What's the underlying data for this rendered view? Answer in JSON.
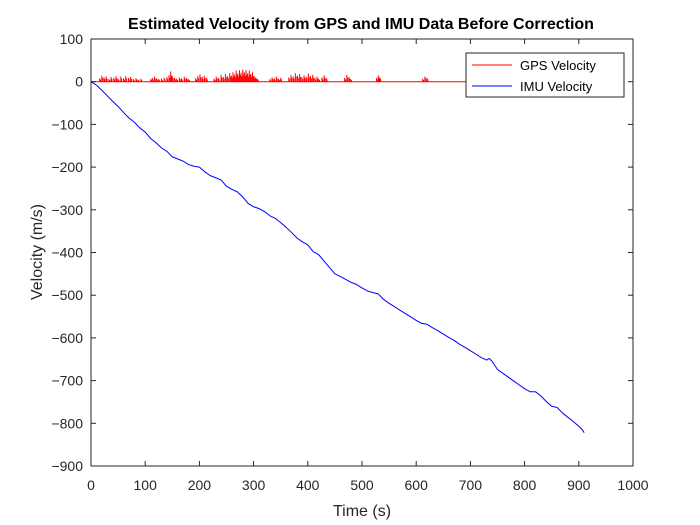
{
  "chart_data": {
    "type": "line",
    "title": "Estimated Velocity from GPS and IMU Data Before Correction",
    "xlabel": "Time (s)",
    "ylabel": "Velocity (m/s)",
    "xlim": [
      0,
      1000
    ],
    "ylim": [
      -900,
      100
    ],
    "xticks": [
      0,
      100,
      200,
      300,
      400,
      500,
      600,
      700,
      800,
      900,
      1000
    ],
    "yticks": [
      100,
      0,
      -100,
      -200,
      -300,
      -400,
      -500,
      -600,
      -700,
      -800,
      -900
    ],
    "grid": false,
    "legend_position": "top-right",
    "series": [
      {
        "name": "GPS Velocity",
        "color": "#ff0000",
        "baseline": 0,
        "x_range": [
          0,
          915
        ],
        "spikes": [
          {
            "x": 16,
            "v": 8
          },
          {
            "x": 20,
            "v": 14
          },
          {
            "x": 24,
            "v": 10
          },
          {
            "x": 28,
            "v": 12
          },
          {
            "x": 33,
            "v": 6
          },
          {
            "x": 37,
            "v": 11
          },
          {
            "x": 42,
            "v": 9
          },
          {
            "x": 46,
            "v": 13
          },
          {
            "x": 50,
            "v": 7
          },
          {
            "x": 55,
            "v": 12
          },
          {
            "x": 60,
            "v": 8
          },
          {
            "x": 64,
            "v": 13
          },
          {
            "x": 69,
            "v": 9
          },
          {
            "x": 73,
            "v": 11
          },
          {
            "x": 78,
            "v": 6
          },
          {
            "x": 83,
            "v": 8
          },
          {
            "x": 87,
            "v": 5
          },
          {
            "x": 92,
            "v": 7
          },
          {
            "x": 110,
            "v": 6
          },
          {
            "x": 113,
            "v": 9
          },
          {
            "x": 117,
            "v": 12
          },
          {
            "x": 121,
            "v": 8
          },
          {
            "x": 125,
            "v": 6
          },
          {
            "x": 130,
            "v": 7
          },
          {
            "x": 135,
            "v": 9
          },
          {
            "x": 140,
            "v": 11
          },
          {
            "x": 144,
            "v": 15
          },
          {
            "x": 147,
            "v": 24
          },
          {
            "x": 150,
            "v": 13
          },
          {
            "x": 154,
            "v": 9
          },
          {
            "x": 158,
            "v": 7
          },
          {
            "x": 163,
            "v": 10
          },
          {
            "x": 167,
            "v": 8
          },
          {
            "x": 172,
            "v": 12
          },
          {
            "x": 176,
            "v": 9
          },
          {
            "x": 180,
            "v": 6
          },
          {
            "x": 193,
            "v": 8
          },
          {
            "x": 197,
            "v": 13
          },
          {
            "x": 201,
            "v": 17
          },
          {
            "x": 205,
            "v": 11
          },
          {
            "x": 209,
            "v": 14
          },
          {
            "x": 213,
            "v": 9
          },
          {
            "x": 227,
            "v": 7
          },
          {
            "x": 231,
            "v": 12
          },
          {
            "x": 235,
            "v": 9
          },
          {
            "x": 240,
            "v": 16
          },
          {
            "x": 244,
            "v": 11
          },
          {
            "x": 248,
            "v": 18
          },
          {
            "x": 252,
            "v": 13
          },
          {
            "x": 256,
            "v": 20
          },
          {
            "x": 259,
            "v": 14
          },
          {
            "x": 262,
            "v": 22
          },
          {
            "x": 265,
            "v": 17
          },
          {
            "x": 268,
            "v": 26
          },
          {
            "x": 271,
            "v": 19
          },
          {
            "x": 274,
            "v": 27
          },
          {
            "x": 277,
            "v": 21
          },
          {
            "x": 280,
            "v": 28
          },
          {
            "x": 283,
            "v": 22
          },
          {
            "x": 286,
            "v": 27
          },
          {
            "x": 289,
            "v": 20
          },
          {
            "x": 292,
            "v": 26
          },
          {
            "x": 295,
            "v": 18
          },
          {
            "x": 298,
            "v": 22
          },
          {
            "x": 301,
            "v": 13
          },
          {
            "x": 304,
            "v": 10
          },
          {
            "x": 307,
            "v": 7
          },
          {
            "x": 330,
            "v": 6
          },
          {
            "x": 334,
            "v": 10
          },
          {
            "x": 338,
            "v": 8
          },
          {
            "x": 342,
            "v": 12
          },
          {
            "x": 346,
            "v": 7
          },
          {
            "x": 350,
            "v": 9
          },
          {
            "x": 365,
            "v": 10
          },
          {
            "x": 369,
            "v": 16
          },
          {
            "x": 373,
            "v": 12
          },
          {
            "x": 377,
            "v": 20
          },
          {
            "x": 381,
            "v": 14
          },
          {
            "x": 385,
            "v": 18
          },
          {
            "x": 389,
            "v": 11
          },
          {
            "x": 393,
            "v": 15
          },
          {
            "x": 397,
            "v": 12
          },
          {
            "x": 401,
            "v": 19
          },
          {
            "x": 405,
            "v": 13
          },
          {
            "x": 409,
            "v": 16
          },
          {
            "x": 413,
            "v": 9
          },
          {
            "x": 417,
            "v": 12
          },
          {
            "x": 420,
            "v": 7
          },
          {
            "x": 426,
            "v": 10
          },
          {
            "x": 430,
            "v": 15
          },
          {
            "x": 434,
            "v": 9
          },
          {
            "x": 468,
            "v": 9
          },
          {
            "x": 472,
            "v": 16
          },
          {
            "x": 476,
            "v": 11
          },
          {
            "x": 479,
            "v": 6
          },
          {
            "x": 527,
            "v": 9
          },
          {
            "x": 530,
            "v": 15
          },
          {
            "x": 533,
            "v": 10
          },
          {
            "x": 612,
            "v": 7
          },
          {
            "x": 616,
            "v": 12
          },
          {
            "x": 620,
            "v": 9
          }
        ]
      },
      {
        "name": "IMU Velocity",
        "color": "#0000ff",
        "points": [
          [
            0,
            0
          ],
          [
            10,
            -8
          ],
          [
            20,
            -20
          ],
          [
            30,
            -33
          ],
          [
            40,
            -46
          ],
          [
            50,
            -58
          ],
          [
            60,
            -72
          ],
          [
            70,
            -85
          ],
          [
            80,
            -95
          ],
          [
            90,
            -108
          ],
          [
            100,
            -118
          ],
          [
            110,
            -133
          ],
          [
            120,
            -143
          ],
          [
            130,
            -155
          ],
          [
            140,
            -163
          ],
          [
            150,
            -176
          ],
          [
            160,
            -181
          ],
          [
            170,
            -186
          ],
          [
            180,
            -194
          ],
          [
            190,
            -198
          ],
          [
            200,
            -200
          ],
          [
            210,
            -211
          ],
          [
            220,
            -220
          ],
          [
            230,
            -225
          ],
          [
            240,
            -230
          ],
          [
            250,
            -245
          ],
          [
            260,
            -252
          ],
          [
            270,
            -258
          ],
          [
            280,
            -270
          ],
          [
            290,
            -285
          ],
          [
            300,
            -293
          ],
          [
            310,
            -297
          ],
          [
            320,
            -304
          ],
          [
            330,
            -314
          ],
          [
            340,
            -320
          ],
          [
            350,
            -330
          ],
          [
            360,
            -341
          ],
          [
            370,
            -353
          ],
          [
            380,
            -366
          ],
          [
            390,
            -375
          ],
          [
            400,
            -382
          ],
          [
            410,
            -398
          ],
          [
            420,
            -405
          ],
          [
            430,
            -420
          ],
          [
            440,
            -435
          ],
          [
            450,
            -450
          ],
          [
            460,
            -456
          ],
          [
            470,
            -463
          ],
          [
            480,
            -470
          ],
          [
            490,
            -475
          ],
          [
            500,
            -483
          ],
          [
            510,
            -490
          ],
          [
            520,
            -494
          ],
          [
            530,
            -497
          ],
          [
            540,
            -510
          ],
          [
            550,
            -519
          ],
          [
            560,
            -527
          ],
          [
            570,
            -535
          ],
          [
            580,
            -543
          ],
          [
            590,
            -551
          ],
          [
            600,
            -559
          ],
          [
            610,
            -566
          ],
          [
            620,
            -568
          ],
          [
            630,
            -576
          ],
          [
            640,
            -583
          ],
          [
            650,
            -591
          ],
          [
            660,
            -599
          ],
          [
            670,
            -606
          ],
          [
            680,
            -615
          ],
          [
            690,
            -622
          ],
          [
            700,
            -630
          ],
          [
            710,
            -638
          ],
          [
            720,
            -646
          ],
          [
            730,
            -652
          ],
          [
            735,
            -648
          ],
          [
            740,
            -655
          ],
          [
            750,
            -674
          ],
          [
            760,
            -683
          ],
          [
            770,
            -692
          ],
          [
            780,
            -701
          ],
          [
            790,
            -710
          ],
          [
            800,
            -719
          ],
          [
            810,
            -726
          ],
          [
            820,
            -726
          ],
          [
            830,
            -736
          ],
          [
            840,
            -749
          ],
          [
            850,
            -760
          ],
          [
            860,
            -763
          ],
          [
            870,
            -776
          ],
          [
            880,
            -786
          ],
          [
            890,
            -796
          ],
          [
            900,
            -807
          ],
          [
            905,
            -813
          ],
          [
            910,
            -822
          ]
        ]
      }
    ]
  }
}
